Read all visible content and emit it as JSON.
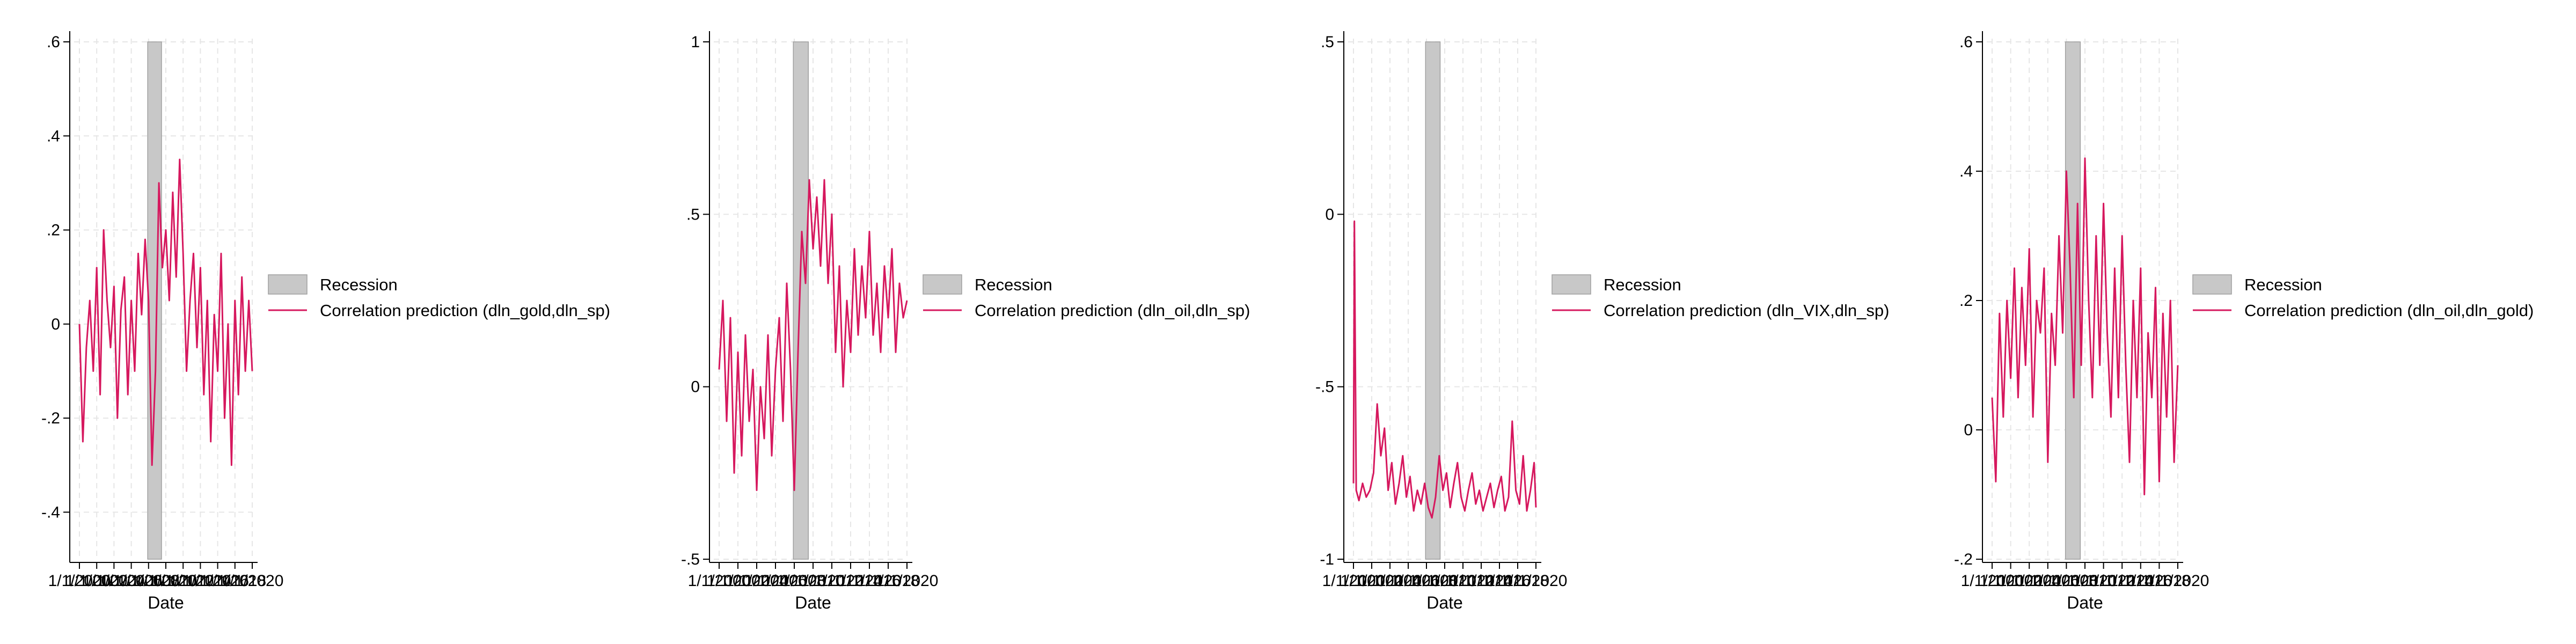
{
  "chart_data": [
    {
      "type": "line",
      "xlabel": "Date",
      "ylabel": "",
      "x_tick_labels": [
        "1/1/2000",
        "1/1/2002",
        "1/1/2004",
        "1/1/2006",
        "1/1/2008",
        "1/1/2010",
        "1/1/2012",
        "1/1/2014",
        "1/1/2016",
        "1/1/2018",
        "1/1/2020"
      ],
      "x_range": [
        2000,
        2020
      ],
      "ylim": [
        -0.5,
        0.6
      ],
      "y_ticks": [
        -0.4,
        -0.2,
        0,
        0.2,
        0.4,
        0.6
      ],
      "y_tick_labels": [
        "-.4",
        "-.2",
        "0",
        ".2",
        ".4",
        ".6"
      ],
      "recession": [
        2007.9,
        2009.5
      ],
      "legend": [
        "Recession",
        "Correlation prediction (dln_gold,dln_sp)"
      ],
      "series": [
        {
          "name": "Correlation prediction (dln_gold,dln_sp)",
          "x": [
            2000.0,
            2000.4,
            2000.8,
            2001.2,
            2001.6,
            2002.0,
            2002.4,
            2002.8,
            2003.2,
            2003.6,
            2004.0,
            2004.4,
            2004.8,
            2005.2,
            2005.6,
            2006.0,
            2006.4,
            2006.8,
            2007.2,
            2007.6,
            2008.0,
            2008.4,
            2008.8,
            2009.2,
            2009.6,
            2010.0,
            2010.4,
            2010.8,
            2011.2,
            2011.6,
            2012.0,
            2012.4,
            2012.8,
            2013.2,
            2013.6,
            2014.0,
            2014.4,
            2014.8,
            2015.2,
            2015.6,
            2016.0,
            2016.4,
            2016.8,
            2017.2,
            2017.6,
            2018.0,
            2018.4,
            2018.8,
            2019.2,
            2019.6,
            2020.0
          ],
          "values": [
            0.0,
            -0.25,
            -0.05,
            0.05,
            -0.1,
            0.12,
            -0.15,
            0.2,
            0.05,
            -0.05,
            0.08,
            -0.2,
            0.03,
            0.1,
            -0.15,
            0.05,
            -0.1,
            0.15,
            0.02,
            0.18,
            0.05,
            -0.3,
            -0.1,
            0.3,
            0.12,
            0.2,
            0.05,
            0.28,
            0.1,
            0.35,
            0.15,
            -0.1,
            0.05,
            0.15,
            -0.05,
            0.12,
            -0.15,
            0.05,
            -0.25,
            0.02,
            -0.1,
            0.15,
            -0.2,
            0.0,
            -0.3,
            0.05,
            -0.15,
            0.1,
            -0.1,
            0.05,
            -0.1
          ]
        }
      ]
    },
    {
      "type": "line",
      "xlabel": "Date",
      "ylabel": "",
      "x_tick_labels": [
        "1/1/2000",
        "1/1/2002",
        "1/1/2004",
        "1/1/2006",
        "1/1/2008",
        "1/1/2010",
        "1/1/2012",
        "1/1/2014",
        "1/1/2016",
        "1/1/2018",
        "1/1/2020"
      ],
      "x_range": [
        2000,
        2020
      ],
      "ylim": [
        -0.5,
        1.0
      ],
      "y_ticks": [
        -0.5,
        0,
        0.5,
        1
      ],
      "y_tick_labels": [
        "-.5",
        "0",
        ".5",
        "1"
      ],
      "recession": [
        2007.9,
        2009.5
      ],
      "legend": [
        "Recession",
        "Correlation prediction (dln_oil,dln_sp)"
      ],
      "series": [
        {
          "name": "Correlation prediction (dln_oil,dln_sp)",
          "x": [
            2000.0,
            2000.4,
            2000.8,
            2001.2,
            2001.6,
            2002.0,
            2002.4,
            2002.8,
            2003.2,
            2003.6,
            2004.0,
            2004.4,
            2004.8,
            2005.2,
            2005.6,
            2006.0,
            2006.4,
            2006.8,
            2007.2,
            2007.6,
            2008.0,
            2008.4,
            2008.8,
            2009.2,
            2009.6,
            2010.0,
            2010.4,
            2010.8,
            2011.2,
            2011.6,
            2012.0,
            2012.4,
            2012.8,
            2013.2,
            2013.6,
            2014.0,
            2014.4,
            2014.8,
            2015.2,
            2015.6,
            2016.0,
            2016.4,
            2016.8,
            2017.2,
            2017.6,
            2018.0,
            2018.4,
            2018.8,
            2019.2,
            2019.6,
            2020.0
          ],
          "values": [
            0.05,
            0.25,
            -0.1,
            0.2,
            -0.25,
            0.1,
            -0.2,
            0.15,
            -0.1,
            0.05,
            -0.3,
            0.0,
            -0.15,
            0.15,
            -0.2,
            0.05,
            0.2,
            -0.1,
            0.3,
            0.05,
            -0.3,
            0.1,
            0.45,
            0.3,
            0.6,
            0.4,
            0.55,
            0.35,
            0.6,
            0.3,
            0.5,
            0.1,
            0.35,
            0.0,
            0.25,
            0.1,
            0.4,
            0.15,
            0.35,
            0.2,
            0.45,
            0.15,
            0.3,
            0.1,
            0.35,
            0.2,
            0.4,
            0.1,
            0.3,
            0.2,
            0.25
          ]
        }
      ]
    },
    {
      "type": "line",
      "xlabel": "Date",
      "ylabel": "",
      "x_tick_labels": [
        "1/1/2000",
        "1/1/2002",
        "1/1/2004",
        "1/1/2006",
        "1/1/2008",
        "1/1/2010",
        "1/1/2012",
        "1/1/2014",
        "1/1/2016",
        "1/1/2018",
        "1/1/2020"
      ],
      "x_range": [
        2000,
        2020
      ],
      "ylim": [
        -1.0,
        0.5
      ],
      "y_ticks": [
        -1,
        -0.5,
        0,
        0.5
      ],
      "y_tick_labels": [
        "-1",
        "-.5",
        "0",
        ".5"
      ],
      "recession": [
        2007.9,
        2009.5
      ],
      "legend": [
        "Recession",
        "Correlation prediction (dln_VIX,dln_sp)"
      ],
      "series": [
        {
          "name": "Correlation prediction (dln_VIX,dln_sp)",
          "x": [
            2000.0,
            2000.1,
            2000.3,
            2000.6,
            2001.0,
            2001.4,
            2001.8,
            2002.2,
            2002.6,
            2003.0,
            2003.4,
            2003.8,
            2004.2,
            2004.6,
            2005.0,
            2005.4,
            2005.8,
            2006.2,
            2006.6,
            2007.0,
            2007.4,
            2007.8,
            2008.2,
            2008.6,
            2009.0,
            2009.4,
            2009.8,
            2010.2,
            2010.6,
            2011.0,
            2011.4,
            2011.8,
            2012.2,
            2012.6,
            2013.0,
            2013.4,
            2013.8,
            2014.2,
            2014.6,
            2015.0,
            2015.4,
            2015.8,
            2016.2,
            2016.6,
            2017.0,
            2017.4,
            2017.8,
            2018.2,
            2018.6,
            2019.0,
            2019.4,
            2019.8,
            2020.0
          ],
          "values": [
            -0.78,
            -0.02,
            -0.8,
            -0.83,
            -0.78,
            -0.82,
            -0.8,
            -0.75,
            -0.55,
            -0.7,
            -0.62,
            -0.8,
            -0.72,
            -0.84,
            -0.78,
            -0.7,
            -0.82,
            -0.76,
            -0.86,
            -0.8,
            -0.84,
            -0.78,
            -0.85,
            -0.88,
            -0.82,
            -0.7,
            -0.8,
            -0.75,
            -0.85,
            -0.78,
            -0.72,
            -0.82,
            -0.86,
            -0.8,
            -0.75,
            -0.84,
            -0.8,
            -0.86,
            -0.82,
            -0.78,
            -0.85,
            -0.8,
            -0.76,
            -0.86,
            -0.82,
            -0.6,
            -0.8,
            -0.84,
            -0.7,
            -0.86,
            -0.8,
            -0.72,
            -0.85
          ]
        }
      ]
    },
    {
      "type": "line",
      "xlabel": "Date",
      "ylabel": "",
      "x_tick_labels": [
        "1/1/2000",
        "1/1/2002",
        "1/1/2004",
        "1/1/2006",
        "1/1/2008",
        "1/1/2010",
        "1/1/2012",
        "1/1/2014",
        "1/1/2016",
        "1/1/2018",
        "1/1/2020"
      ],
      "x_range": [
        2000,
        2020
      ],
      "ylim": [
        -0.2,
        0.6
      ],
      "y_ticks": [
        -0.2,
        0,
        0.2,
        0.4,
        0.6
      ],
      "y_tick_labels": [
        "-.2",
        "0",
        ".2",
        ".4",
        ".6"
      ],
      "recession": [
        2007.9,
        2009.5
      ],
      "legend": [
        "Recession",
        "Correlation prediction (dln_oil,dln_gold)"
      ],
      "series": [
        {
          "name": "Correlation prediction (dln_oil,dln_gold)",
          "x": [
            2000.0,
            2000.4,
            2000.8,
            2001.2,
            2001.6,
            2002.0,
            2002.4,
            2002.8,
            2003.2,
            2003.6,
            2004.0,
            2004.4,
            2004.8,
            2005.2,
            2005.6,
            2006.0,
            2006.4,
            2006.8,
            2007.2,
            2007.6,
            2008.0,
            2008.4,
            2008.8,
            2009.2,
            2009.6,
            2010.0,
            2010.4,
            2010.8,
            2011.2,
            2011.6,
            2012.0,
            2012.4,
            2012.8,
            2013.2,
            2013.6,
            2014.0,
            2014.4,
            2014.8,
            2015.2,
            2015.6,
            2016.0,
            2016.4,
            2016.8,
            2017.2,
            2017.6,
            2018.0,
            2018.4,
            2018.8,
            2019.2,
            2019.6,
            2020.0
          ],
          "values": [
            0.05,
            -0.08,
            0.18,
            0.02,
            0.2,
            0.08,
            0.25,
            0.05,
            0.22,
            0.1,
            0.28,
            0.02,
            0.2,
            0.15,
            0.25,
            -0.05,
            0.18,
            0.1,
            0.3,
            0.15,
            0.4,
            0.25,
            0.05,
            0.35,
            0.1,
            0.42,
            0.2,
            0.05,
            0.3,
            0.1,
            0.35,
            0.15,
            0.02,
            0.25,
            0.05,
            0.3,
            0.1,
            -0.05,
            0.2,
            0.05,
            0.25,
            -0.1,
            0.15,
            0.05,
            0.22,
            -0.08,
            0.18,
            0.02,
            0.2,
            -0.05,
            0.1
          ]
        }
      ]
    }
  ]
}
